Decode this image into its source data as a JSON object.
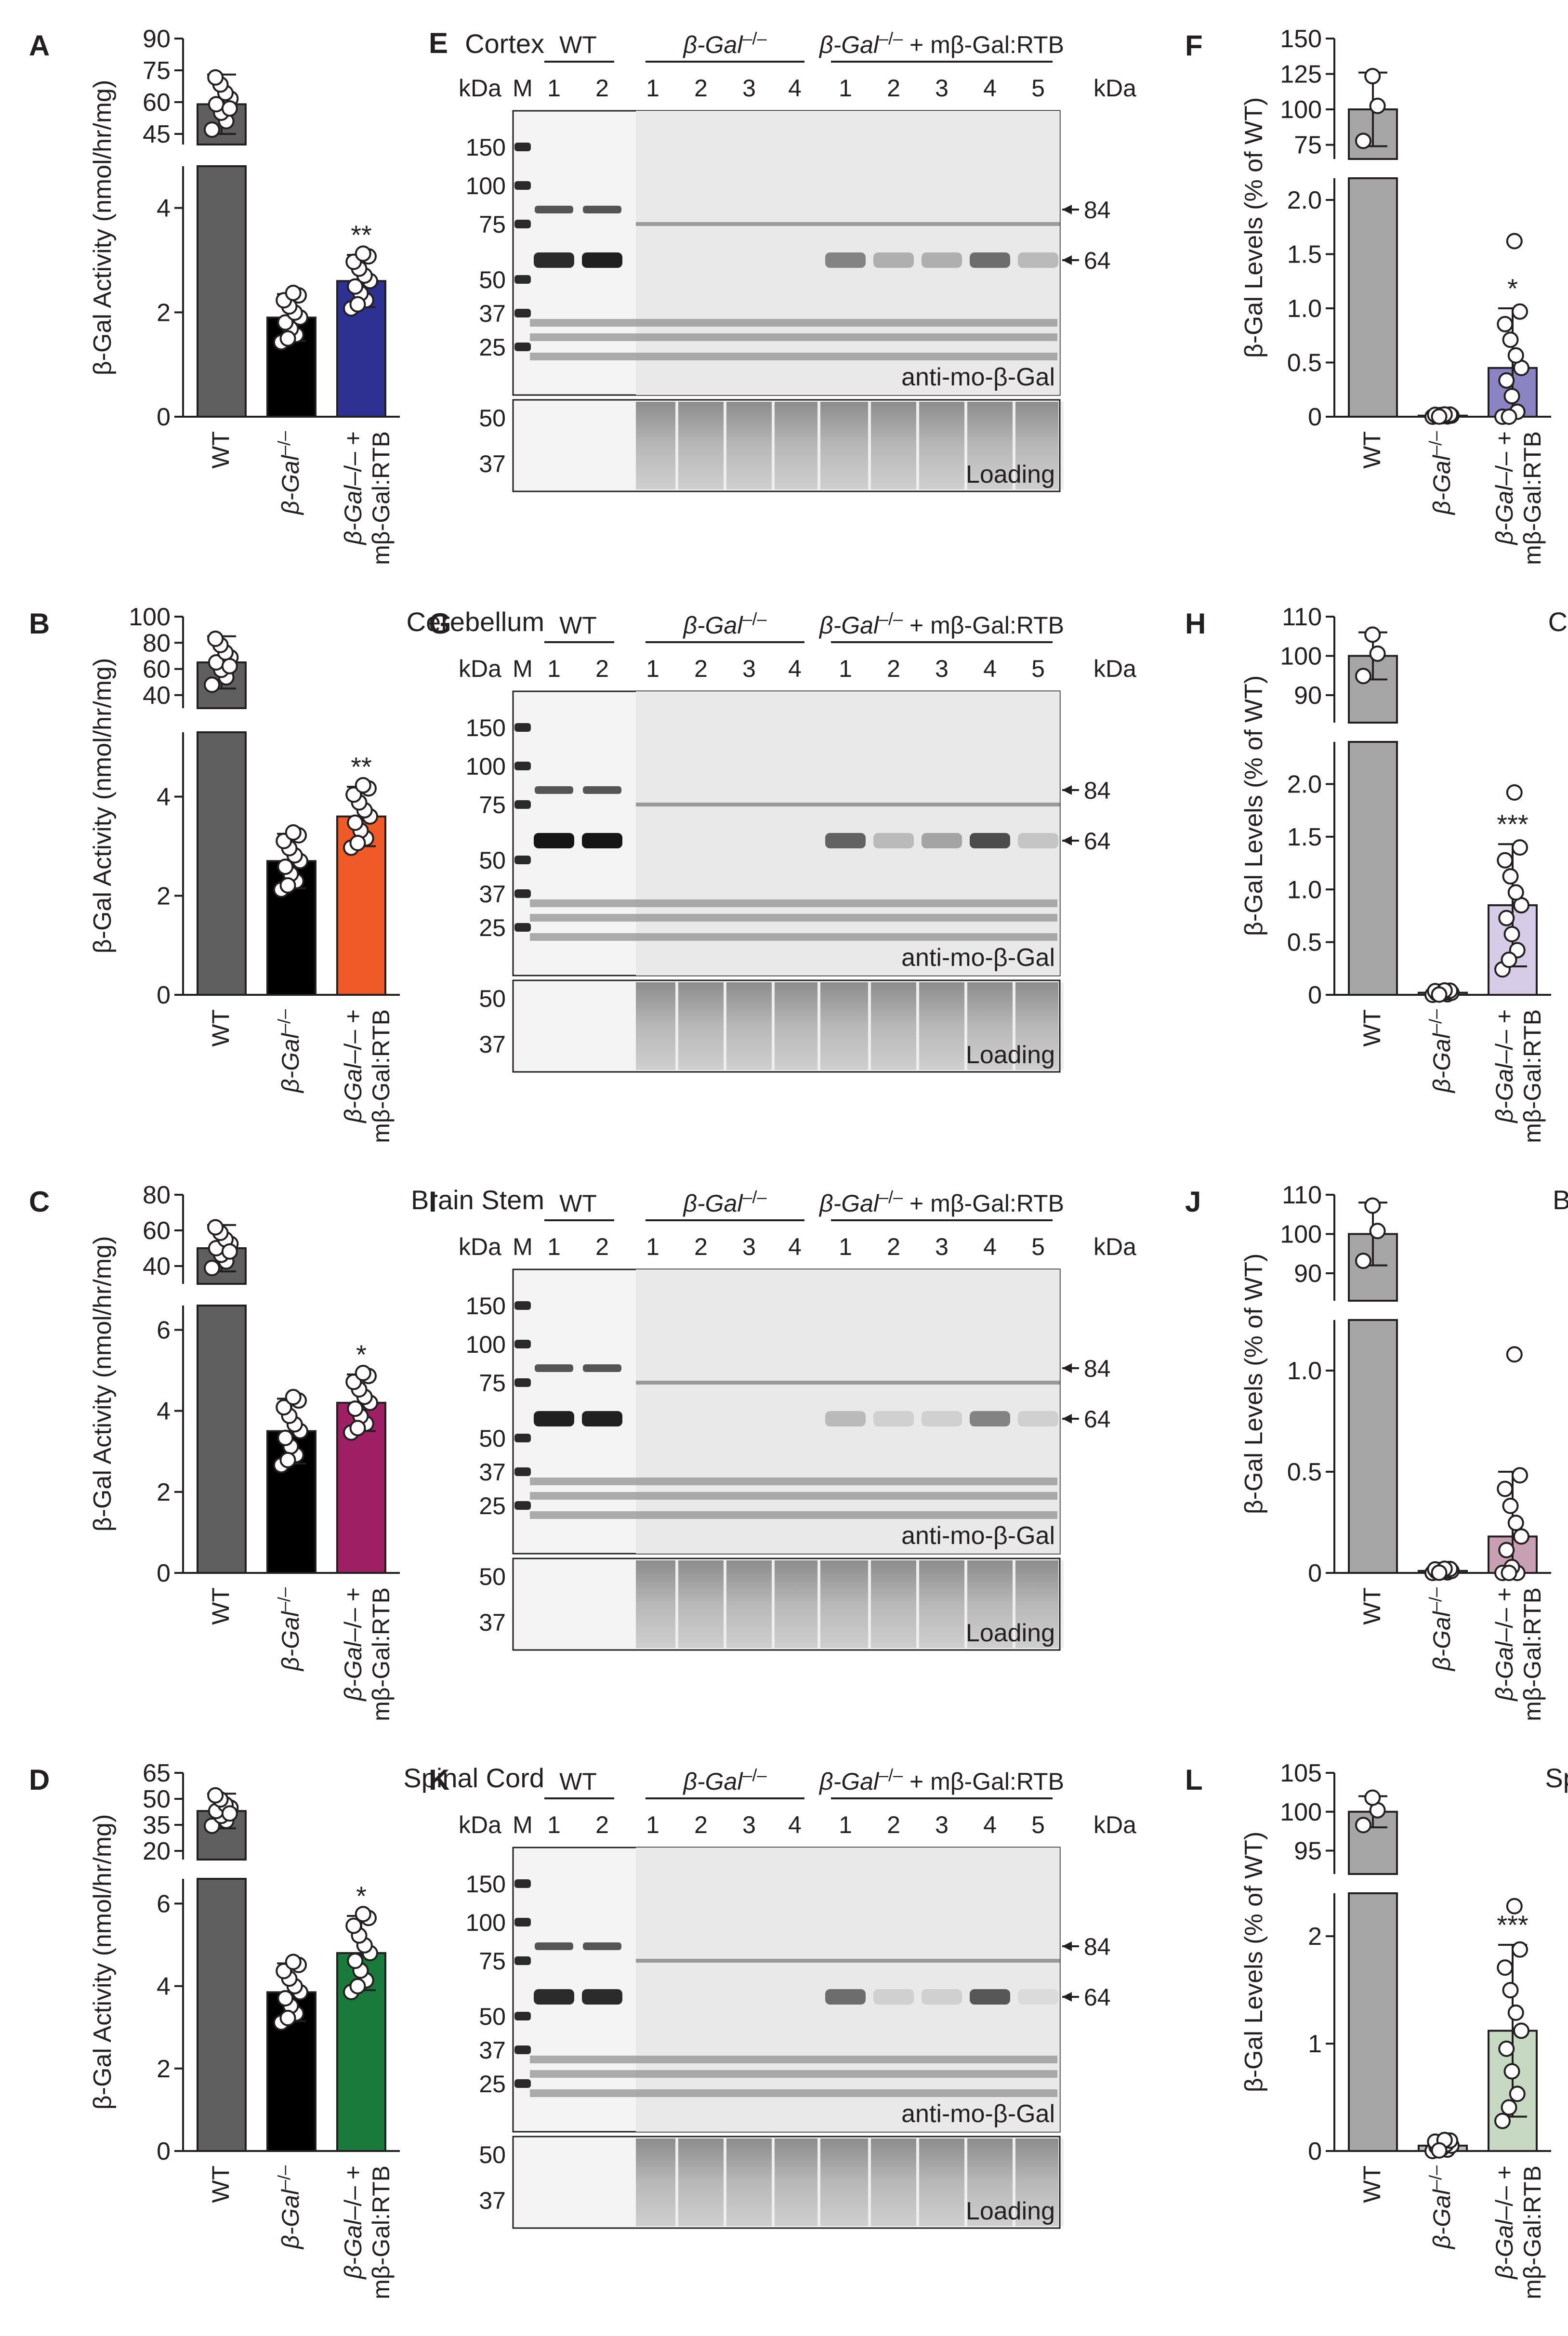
{
  "colors": {
    "wt_activity": "#5f5f5f",
    "ko": "#000000",
    "wt_level": "#a6a6a6",
    "ko_level": "#bfbfbf",
    "ink": "#231f20"
  },
  "common": {
    "act_ylabel": "β-Gal Activity (nmol/hr/mg)",
    "lvl_ylabel": "β-Gal Levels (% of WT)",
    "cat_wt": "WT",
    "cat_ko": "β-Gal",
    "cat_ko_sup": "–/–",
    "cat_tx_a": "β-Gal",
    "cat_tx_b": "–/– +",
    "cat_tx_c": "mβ-Gal:RTB",
    "kda": "kDa",
    "marker": "M",
    "antibody": "anti-mo-β-Gal",
    "loading": "Loading",
    "grp_wt": "WT",
    "grp_ko_a": "β-Gal",
    "grp_ko_b": "–/–",
    "grp_tx_a": "β-Gal",
    "grp_tx_b": "–/–",
    "grp_tx_c": " + mβ-Gal:RTB",
    "wt_lanes": [
      "1",
      "2"
    ],
    "ko_lanes": [
      "1",
      "2",
      "3",
      "4"
    ],
    "tx_lanes": [
      "1",
      "2",
      "3",
      "4",
      "5"
    ],
    "right_markers": [
      "84",
      "64"
    ],
    "loading_markers": [
      "50",
      "37"
    ]
  },
  "chart_data": [
    {
      "panel": "A",
      "type": "bar",
      "title": "Cortex",
      "ylabel": "β-Gal Activity (nmol/hr/mg)",
      "categories": [
        "WT",
        "β-Gal−/−",
        "β-Gal−/− + mβ-Gal:RTB"
      ],
      "values": [
        59,
        1.9,
        2.6
      ],
      "errors": [
        14,
        0.45,
        0.5
      ],
      "bar_colors": [
        "#5f5f5f",
        "#000000",
        "#2e3192"
      ],
      "upper_ylim": [
        40,
        90
      ],
      "upper_ticks": [
        "90",
        "75",
        "60",
        "45"
      ],
      "lower_ylim": [
        0,
        4.8
      ],
      "lower_ticks": [
        "4",
        "2",
        "0"
      ],
      "significance": [
        "",
        "",
        "**"
      ]
    },
    {
      "panel": "B",
      "type": "bar",
      "title": "Cerebellum",
      "ylabel": "β-Gal Activity (nmol/hr/mg)",
      "categories": [
        "WT",
        "β-Gal−/−",
        "β-Gal−/− + mβ-Gal:RTB"
      ],
      "values": [
        65,
        2.7,
        3.6
      ],
      "errors": [
        20,
        0.55,
        0.6
      ],
      "bar_colors": [
        "#5f5f5f",
        "#000000",
        "#f05a28"
      ],
      "upper_ylim": [
        30,
        100
      ],
      "upper_ticks": [
        "100",
        "80",
        "60",
        "40"
      ],
      "lower_ylim": [
        0,
        5.3
      ],
      "lower_ticks": [
        "4",
        "2",
        "0"
      ],
      "significance": [
        "",
        "",
        "**"
      ]
    },
    {
      "panel": "C",
      "type": "bar",
      "title": "Brain Stem",
      "ylabel": "β-Gal Activity (nmol/hr/mg)",
      "categories": [
        "WT",
        "β-Gal−/−",
        "β-Gal−/− + mβ-Gal:RTB"
      ],
      "values": [
        50,
        3.5,
        4.2
      ],
      "errors": [
        13,
        0.8,
        0.7
      ],
      "bar_colors": [
        "#5f5f5f",
        "#000000",
        "#9e1f63"
      ],
      "upper_ylim": [
        30,
        80
      ],
      "upper_ticks": [
        "80",
        "60",
        "40"
      ],
      "lower_ylim": [
        0,
        6.6
      ],
      "lower_ticks": [
        "6",
        "4",
        "2",
        "0"
      ],
      "significance": [
        "",
        "",
        "*"
      ]
    },
    {
      "panel": "D",
      "type": "bar",
      "title": "Spinal Cord",
      "ylabel": "β-Gal Activity (nmol/hr/mg)",
      "categories": [
        "WT",
        "β-Gal−/−",
        "β-Gal−/− + mβ-Gal:RTB"
      ],
      "values": [
        43,
        3.85,
        4.8
      ],
      "errors": [
        10,
        0.7,
        0.9
      ],
      "bar_colors": [
        "#5f5f5f",
        "#000000",
        "#1a7a3c"
      ],
      "upper_ylim": [
        15,
        65
      ],
      "upper_ticks": [
        "65",
        "50",
        "35",
        "20"
      ],
      "lower_ylim": [
        0,
        6.6
      ],
      "lower_ticks": [
        "6",
        "4",
        "2",
        "0"
      ],
      "significance": [
        "",
        "",
        "*"
      ]
    },
    {
      "panel": "F",
      "type": "bar",
      "title": "Cortex",
      "ylabel": "β-Gal Levels (% of WT)",
      "categories": [
        "WT",
        "β-Gal−/−",
        "β-Gal−/− + mβ-Gal:RTB"
      ],
      "values": [
        100,
        0.01,
        0.45
      ],
      "errors": [
        26,
        0.01,
        0.55
      ],
      "bar_colors": [
        "#a6a6a6",
        "#bfbfbf",
        "#8b84c2"
      ],
      "upper_ylim": [
        65,
        150
      ],
      "upper_ticks": [
        "150",
        "125",
        "100",
        "75"
      ],
      "lower_ylim": [
        0,
        2.2
      ],
      "lower_ticks": [
        "2.0",
        "1.5",
        "1.0",
        "0.5",
        "0"
      ],
      "significance": [
        "",
        "",
        "*"
      ]
    },
    {
      "panel": "H",
      "type": "bar",
      "title": "Cerebellum",
      "ylabel": "β-Gal Levels (% of WT)",
      "categories": [
        "WT",
        "β-Gal−/−",
        "β-Gal−/− + mβ-Gal:RTB"
      ],
      "values": [
        100,
        0.02,
        0.85
      ],
      "errors": [
        6,
        0.02,
        0.58
      ],
      "bar_colors": [
        "#a6a6a6",
        "#bfbfbf",
        "#d7cce8"
      ],
      "upper_ylim": [
        83,
        110
      ],
      "upper_ticks": [
        "110",
        "100",
        "90"
      ],
      "lower_ylim": [
        0,
        2.4
      ],
      "lower_ticks": [
        "2.0",
        "1.5",
        "1.0",
        "0.5",
        "0"
      ],
      "significance": [
        "",
        "",
        "***"
      ]
    },
    {
      "panel": "J",
      "type": "bar",
      "title": "Brain Stem",
      "ylabel": "β-Gal Levels (% of WT)",
      "categories": [
        "WT",
        "β-Gal−/−",
        "β-Gal−/− + mβ-Gal:RTB"
      ],
      "values": [
        100,
        0.01,
        0.18
      ],
      "errors": [
        8,
        0.01,
        0.32
      ],
      "bar_colors": [
        "#a6a6a6",
        "#bfbfbf",
        "#c9a0b3"
      ],
      "upper_ylim": [
        83,
        110
      ],
      "upper_ticks": [
        "110",
        "100",
        "90"
      ],
      "lower_ylim": [
        0,
        1.25
      ],
      "lower_ticks": [
        "1.0",
        "0.5",
        "0"
      ],
      "significance": [
        "",
        "",
        ""
      ]
    },
    {
      "panel": "L",
      "type": "bar",
      "title": "Spinal Cord",
      "ylabel": "β-Gal Levels (% of WT)",
      "categories": [
        "WT",
        "β-Gal−/−",
        "β-Gal−/− + mβ-Gal:RTB"
      ],
      "values": [
        100,
        0.05,
        1.12
      ],
      "errors": [
        2,
        0.05,
        0.8
      ],
      "bar_colors": [
        "#a6a6a6",
        "#bfbfbf",
        "#c7d9c2"
      ],
      "upper_ylim": [
        92,
        105
      ],
      "upper_ticks": [
        "105",
        "100",
        "95"
      ],
      "lower_ylim": [
        0,
        2.4
      ],
      "lower_ticks": [
        "2",
        "1",
        "0"
      ],
      "significance": [
        "",
        "",
        "***"
      ]
    },
    {
      "panel": "E",
      "type": "table",
      "title": "Western blot, Cortex",
      "ladder_kda": [
        "150",
        "100",
        "75",
        "50",
        "37",
        "25"
      ],
      "band_84_lanes": {
        "wt": [
          1,
          2
        ],
        "ko": [],
        "tx": []
      },
      "band_64_intensity": {
        "wt": [
          0.85,
          0.9
        ],
        "ko": [
          0,
          0,
          0,
          0
        ],
        "tx": [
          0.45,
          0.25,
          0.25,
          0.55,
          0.2
        ]
      }
    },
    {
      "panel": "G",
      "type": "table",
      "title": "Western blot, Cerebellum",
      "ladder_kda": [
        "150",
        "100",
        "75",
        "50",
        "37",
        "25"
      ],
      "band_84_lanes": {
        "wt": [
          1,
          2
        ],
        "ko": [],
        "tx": []
      },
      "band_64_intensity": {
        "wt": [
          0.95,
          0.95
        ],
        "ko": [
          0,
          0,
          0,
          0
        ],
        "tx": [
          0.6,
          0.2,
          0.3,
          0.7,
          0.15
        ]
      }
    },
    {
      "panel": "I",
      "type": "table",
      "title": "Western blot, Brain Stem",
      "ladder_kda": [
        "150",
        "100",
        "75",
        "50",
        "37",
        "25"
      ],
      "band_84_lanes": {
        "wt": [
          1,
          2
        ],
        "ko": [],
        "tx": []
      },
      "band_64_intensity": {
        "wt": [
          0.9,
          0.9
        ],
        "ko": [
          0,
          0,
          0,
          0
        ],
        "tx": [
          0.2,
          0.1,
          0.1,
          0.45,
          0.1
        ]
      }
    },
    {
      "panel": "K",
      "type": "table",
      "title": "Western blot, Spinal Cord",
      "ladder_kda": [
        "150",
        "100",
        "75",
        "50",
        "37",
        "25"
      ],
      "band_84_lanes": {
        "wt": [
          1,
          2
        ],
        "ko": [],
        "tx": []
      },
      "band_64_intensity": {
        "wt": [
          0.85,
          0.85
        ],
        "ko": [
          0,
          0,
          0,
          0
        ],
        "tx": [
          0.55,
          0.1,
          0.1,
          0.65,
          0.05
        ]
      }
    }
  ]
}
